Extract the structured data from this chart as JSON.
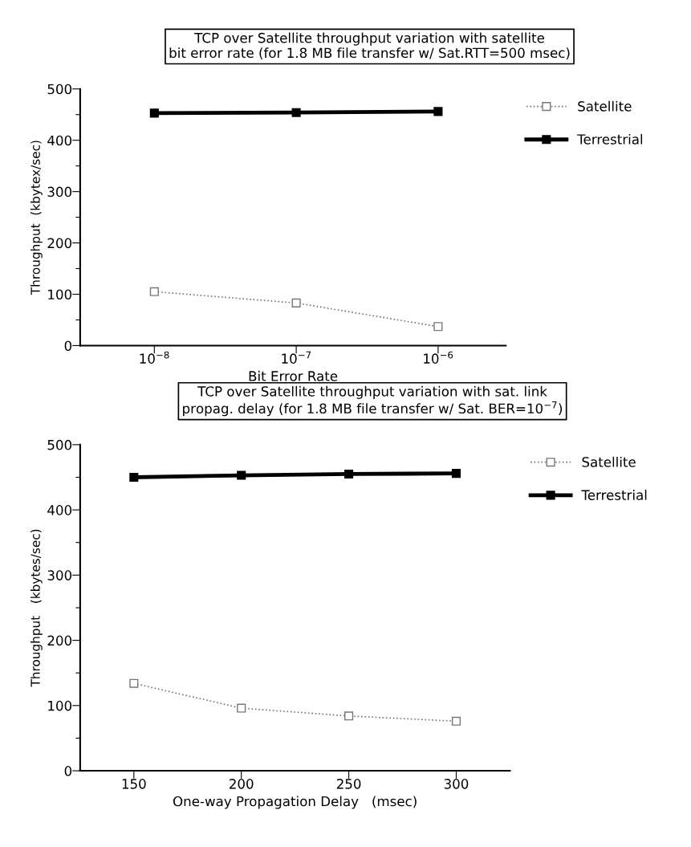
{
  "chart_data": [
    {
      "type": "line",
      "title": "TCP over Satellite throughput variation with satellite\nbit error rate (for 1.8 MB file transfer w/ Sat.RTT=500 msec)",
      "xlabel": "Bit Error Rate",
      "ylabel": "Throughput  (kbytex/sec)",
      "log": "x",
      "x": [
        1e-08,
        1e-07,
        1e-06
      ],
      "xlim": [
        3e-09,
        3e-06
      ],
      "xticks": [
        {
          "value": 1e-08,
          "label": "10$^{−8}$"
        },
        {
          "value": 1e-07,
          "label": "10$^{−7}$"
        },
        {
          "value": 1e-06,
          "label": "10$^{−6}$"
        }
      ],
      "ylim": [
        0,
        500
      ],
      "yticks": [
        0,
        {
          "value": 50,
          "label": null
        },
        100,
        {
          "value": 150,
          "label": null
        },
        200,
        {
          "value": 250,
          "label": null
        },
        300,
        {
          "value": 350,
          "label": null
        },
        400,
        {
          "value": 450,
          "label": null
        },
        500
      ],
      "grid": false,
      "legend": "top right",
      "series": [
        {
          "name": "Satellite",
          "color": "#777777",
          "marker": "square",
          "line_style": "dotted",
          "values": [
            105,
            83,
            37
          ]
        },
        {
          "name": "Terrestrial",
          "color": "#000000",
          "marker": "square",
          "line_style": "solid",
          "values": [
            453,
            454,
            456
          ]
        }
      ]
    },
    {
      "type": "line",
      "title": "TCP over Satellite throughput variation with sat. link\npropag. delay (for 1.8 MB file transfer w/ Sat. BER=10$^{−7}$)",
      "xlabel": "One-way Propagation Delay   (msec)",
      "ylabel": "Throughput   (kbytes/sec)",
      "x": [
        150,
        200,
        250,
        300
      ],
      "xlim": [
        125,
        325
      ],
      "xticks": [
        150,
        200,
        250,
        300
      ],
      "ylim": [
        0,
        500
      ],
      "yticks": [
        0,
        {
          "value": 50,
          "label": null
        },
        100,
        {
          "value": 150,
          "label": null
        },
        200,
        {
          "value": 250,
          "label": null
        },
        300,
        {
          "value": 350,
          "label": null
        },
        400,
        {
          "value": 450,
          "label": null
        },
        500
      ],
      "grid": false,
      "legend": "top right",
      "series": [
        {
          "name": "Satellite",
          "color": "#777777",
          "marker": "square",
          "line_style": "dotted",
          "values": [
            134,
            96,
            84,
            76
          ]
        },
        {
          "name": "Terrestrial",
          "color": "#000000",
          "marker": "square",
          "line_style": "solid",
          "values": [
            450,
            453,
            455,
            456
          ]
        }
      ]
    }
  ]
}
